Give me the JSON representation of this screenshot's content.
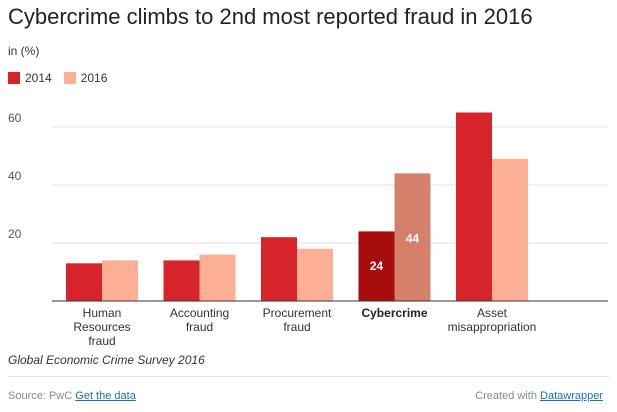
{
  "chart_data": {
    "type": "bar",
    "title": "Cybercrime climbs to 2nd most reported fraud in 2016",
    "subtitle": "in (%)",
    "categories": [
      "Human Resources fraud",
      "Accounting fraud",
      "Procurement fraud",
      "Cybercrime",
      "Asset misappropriation"
    ],
    "category_lines": [
      [
        "Human",
        "Resources",
        "fraud"
      ],
      [
        "Accounting",
        "fraud"
      ],
      [
        "Procurement",
        "fraud"
      ],
      [
        "Cybercrime"
      ],
      [
        "Asset",
        "misappropriation"
      ]
    ],
    "highlight_index": 3,
    "series": [
      {
        "name": "2014",
        "values": [
          13,
          14,
          22,
          24,
          65
        ],
        "color": "#d7242a",
        "highlight_color": "#a80d0d"
      },
      {
        "name": "2016",
        "values": [
          14,
          16,
          18,
          44,
          49
        ],
        "color": "#fcaf94",
        "highlight_color": "#d5806a"
      }
    ],
    "data_labels": [
      {
        "series": 0,
        "index": 3,
        "text": "24"
      },
      {
        "series": 1,
        "index": 3,
        "text": "44"
      }
    ],
    "yticks": [
      20,
      40,
      60
    ],
    "ylim": [
      0,
      70
    ],
    "grid": true,
    "legend_position": "top-left",
    "note": "Global Economic Crime Survey 2016"
  },
  "footer": {
    "source_label": "Source: PwC",
    "get_data_link": "Get the data",
    "created_label": "Created with",
    "datawrapper_link": "Datawrapper"
  }
}
